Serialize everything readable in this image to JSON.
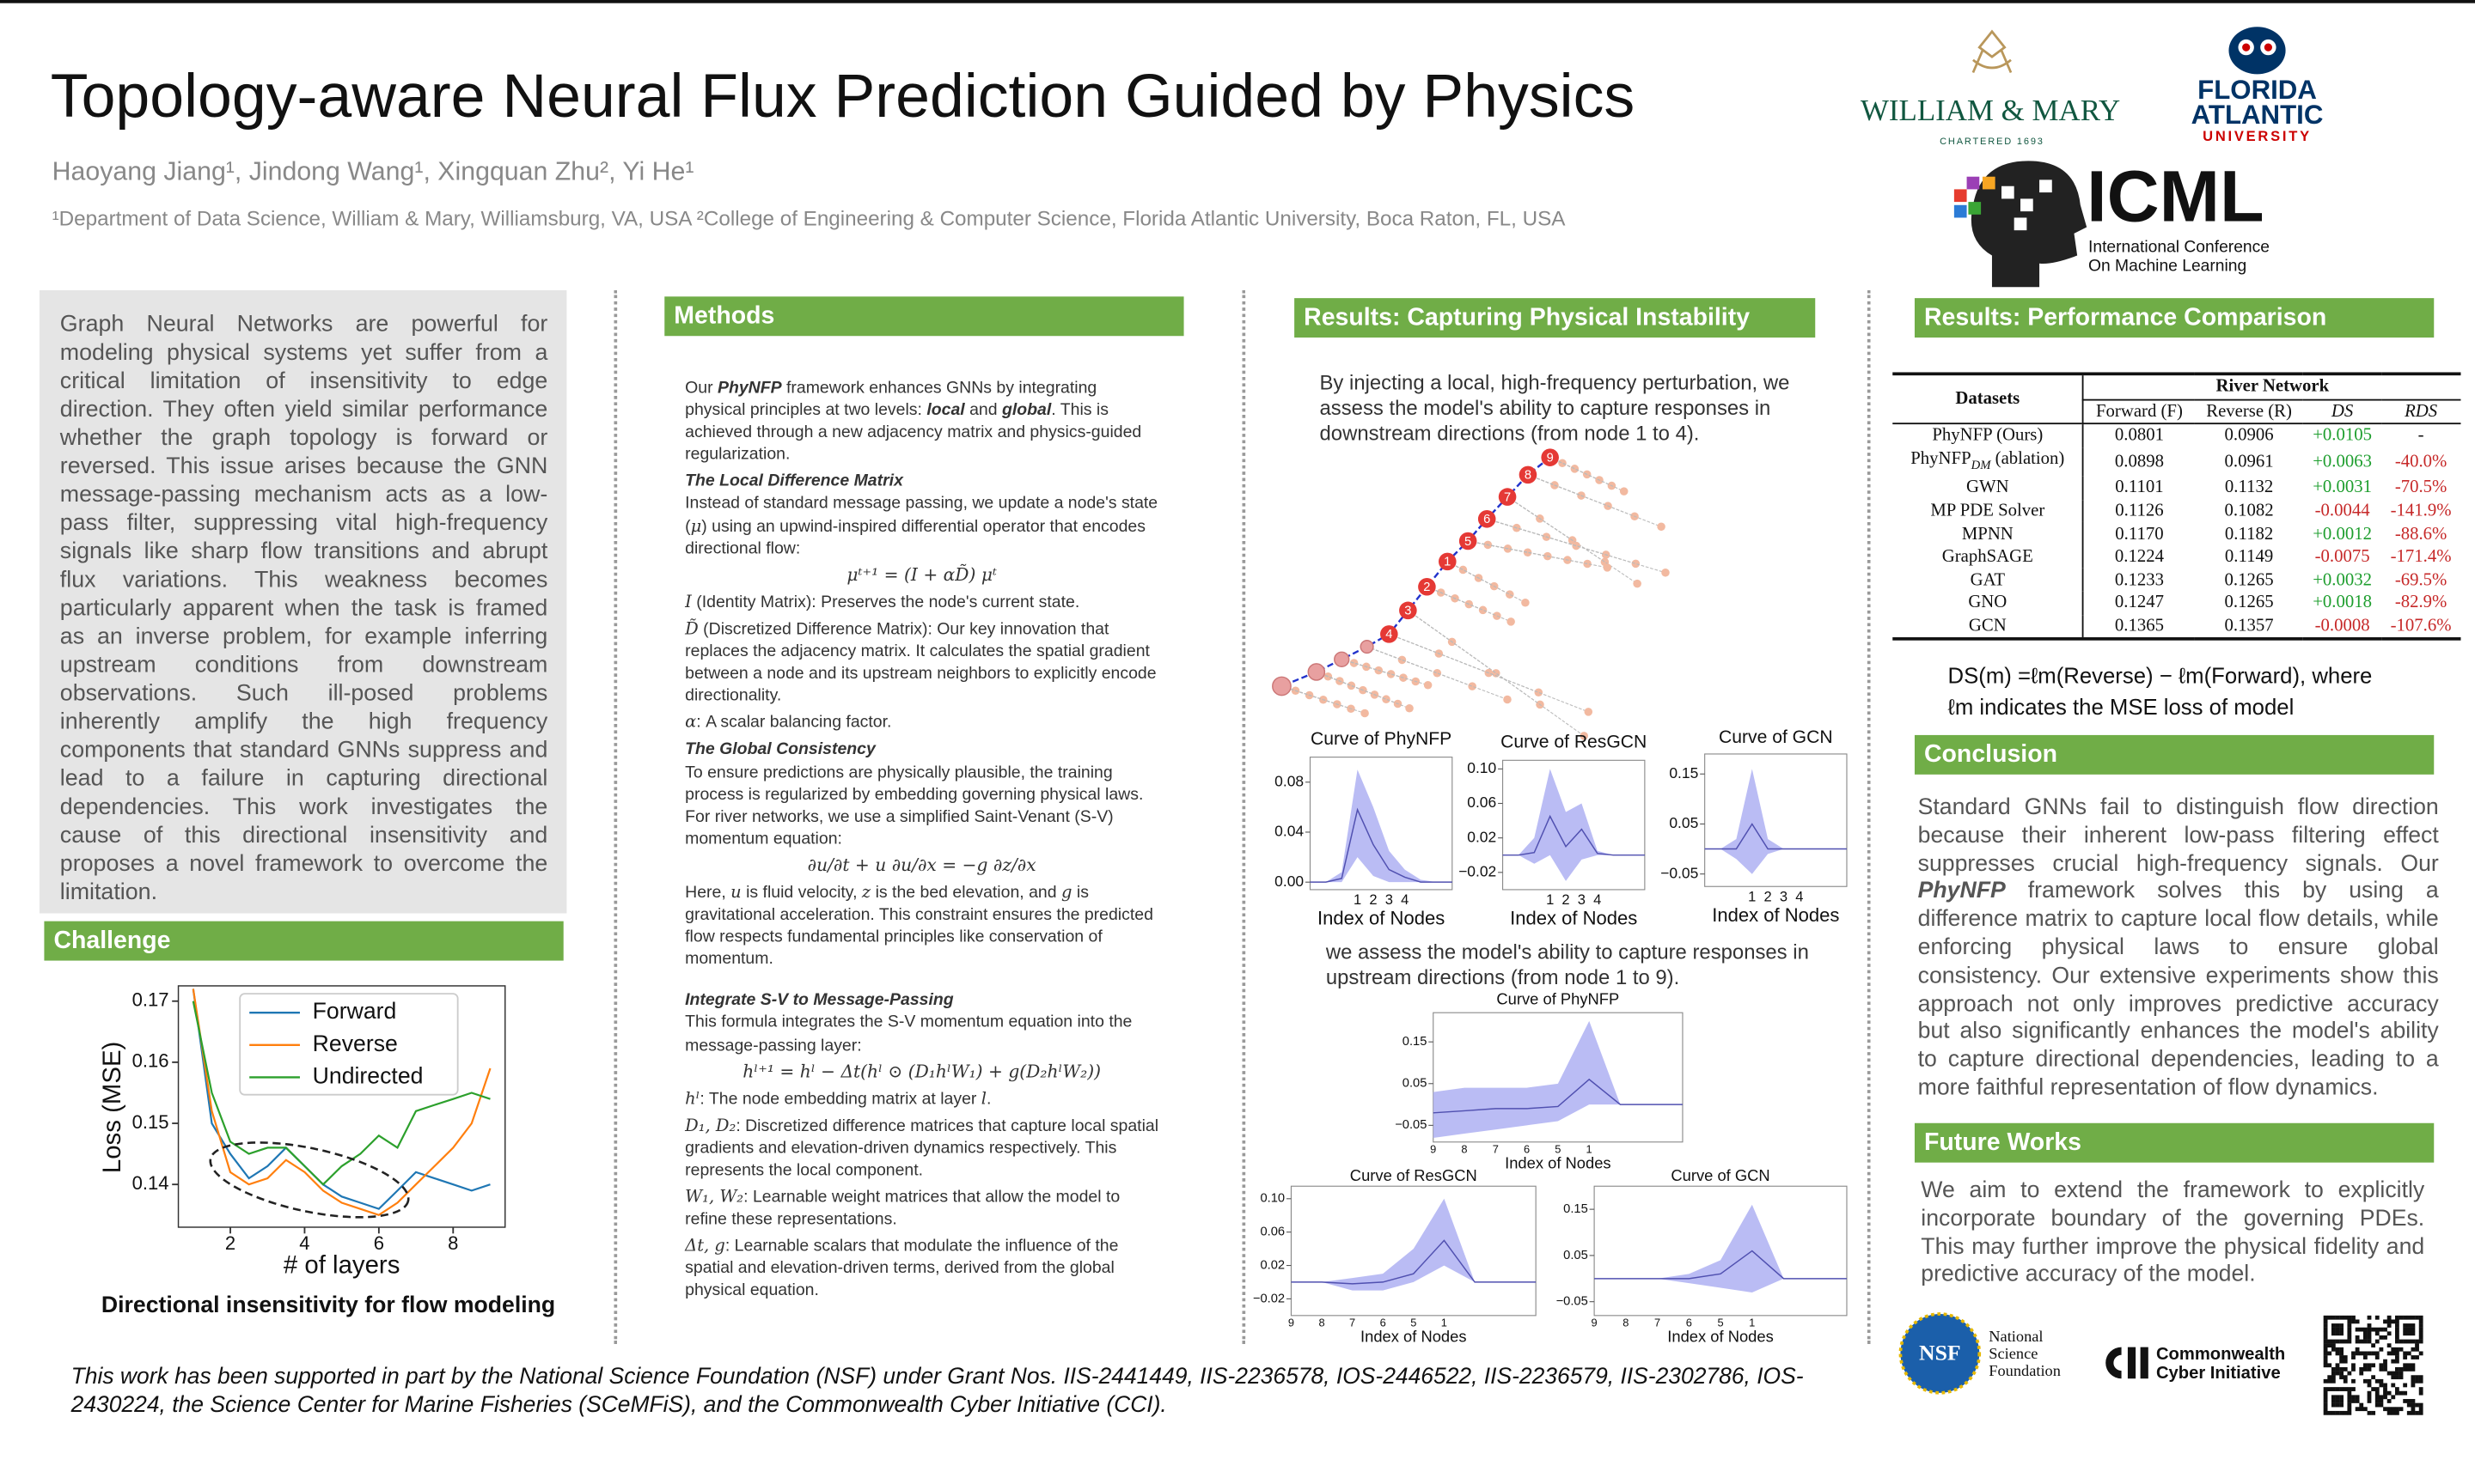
{
  "header": {
    "title": "Topology-aware Neural Flux Prediction Guided by Physics",
    "authors": "Haoyang Jiang¹, Jindong Wang¹, Xingquan Zhu², Yi He¹",
    "affiliations": "¹Department of Data Science, William & Mary, Williamsburg, VA, USA ²College of Engineering & Computer Science, Florida Atlantic University, Boca Raton, FL, USA",
    "logos": {
      "wm_name": "WILLIAM & MARY",
      "wm_sub": "CHARTERED 1693",
      "fau_1": "FLORIDA",
      "fau_2": "ATLANTIC",
      "fau_3": "UNIVERSITY",
      "icml": "ICML",
      "icml_1": "International Conference",
      "icml_2": "On Machine Learning"
    }
  },
  "intro": "Graph Neural Networks are powerful for modeling physical systems yet suffer from a critical limitation of insensitivity to edge direction. They often yield similar performance whether the graph topology is forward or reversed. This issue arises because the GNN message-passing mechanism acts as a low-pass filter, suppressing vital high-frequency signals like sharp flow transitions and abrupt flux variations. This weakness becomes particularly apparent when the task is framed as an inverse problem, for example inferring upstream conditions from downstream observations. Such ill-posed problems inherently amplify the high frequency components that standard GNNs suppress and lead to a failure in capturing directional dependencies. This work investigates the cause of this directional insensitivity and proposes a novel framework to overcome the limitation.",
  "challenge": {
    "heading": "Challenge",
    "caption": "Directional insensitivity for flow modeling",
    "chart": {
      "type": "line",
      "xlabel": "# of layers",
      "ylabel": "Loss (MSE)",
      "x": [
        1,
        1.5,
        2,
        2.5,
        3,
        3.5,
        4,
        4.5,
        5,
        5.5,
        6,
        6.5,
        7,
        7.5,
        8,
        8.5,
        9
      ],
      "series": [
        {
          "name": "Forward",
          "color": "#1f77b4",
          "values": [
            0.172,
            0.15,
            0.145,
            0.141,
            0.143,
            0.146,
            0.143,
            0.14,
            0.138,
            0.137,
            0.136,
            0.139,
            0.142,
            0.141,
            0.14,
            0.139,
            0.14
          ]
        },
        {
          "name": "Reverse",
          "color": "#ff7f0e",
          "values": [
            0.172,
            0.152,
            0.142,
            0.14,
            0.141,
            0.144,
            0.142,
            0.139,
            0.137,
            0.136,
            0.135,
            0.137,
            0.14,
            0.143,
            0.146,
            0.15,
            0.159
          ]
        },
        {
          "name": "Undirected",
          "color": "#2ca02c",
          "values": [
            0.17,
            0.155,
            0.147,
            0.145,
            0.146,
            0.146,
            0.143,
            0.14,
            0.143,
            0.145,
            0.148,
            0.146,
            0.152,
            0.153,
            0.154,
            0.155,
            0.154
          ]
        }
      ],
      "xlim": [
        0.6,
        9.4
      ],
      "ylim": [
        0.133,
        0.1725
      ],
      "xticks": [
        2,
        4,
        6,
        8
      ],
      "yticks": [
        0.14,
        0.15,
        0.16,
        0.17
      ]
    }
  },
  "methods": {
    "heading": "Methods",
    "blocks": [
      {
        "p": [
          "Our ",
          {
            "em": "PhyNFP"
          },
          " framework enhances GNNs by integrating physical principles at two levels: ",
          {
            "em": "local"
          },
          " and ",
          {
            "em": "global"
          },
          ". This is achieved through a new adjacency matrix and physics-guided regularization."
        ]
      },
      {
        "h": "The Local Difference Matrix"
      },
      {
        "p": [
          "Instead of standard message passing, we update a node's state (",
          {
            "m": "μ"
          },
          ") using an upwind-inspired differential operator that encodes directional flow:"
        ]
      },
      {
        "eq": "μᵗ⁺¹ = (I + αD̃) μᵗ"
      },
      {
        "p": [
          {
            "m": "I"
          },
          " (Identity Matrix): Preserves the node's current state."
        ]
      },
      {
        "p": [
          {
            "m": "D̃"
          },
          " (Discretized Difference Matrix): Our key innovation that replaces the adjacency matrix. It calculates the spatial gradient between a node and its upstream neighbors to explicitly encode directionality."
        ]
      },
      {
        "p": [
          {
            "m": "α"
          },
          ": A scalar balancing factor."
        ]
      },
      {
        "h": "The Global Consistency"
      },
      {
        "p": [
          "To ensure predictions are physically plausible, the training process is regularized by embedding governing physical laws. For river networks, we use a simplified Saint-Venant (S-V) momentum equation:"
        ]
      },
      {
        "eq": "∂u/∂t + u ∂u/∂x = −g ∂z/∂x"
      },
      {
        "p": [
          "Here, ",
          {
            "m": "u"
          },
          " is fluid velocity, ",
          {
            "m": "z"
          },
          " is the bed elevation, and ",
          {
            "m": "g"
          },
          " is gravitational acceleration. This constraint ensures the predicted flow respects fundamental principles like conservation of momentum."
        ]
      },
      {
        "h": "Integrate S-V to Message-Passing"
      },
      {
        "p": [
          "This formula integrates the S-V momentum equation into the message-passing layer:"
        ]
      },
      {
        "eq": "hˡ⁺¹ = hˡ − Δt(hˡ ⊙ (D₁hˡW₁) + g(D₂hˡW₂))"
      },
      {
        "p": [
          {
            "m": "hˡ"
          },
          ": The node embedding matrix at layer ",
          {
            "m": "l"
          },
          "."
        ]
      },
      {
        "p": [
          {
            "m": "D₁, D₂"
          },
          ": Discretized difference matrices that capture local spatial gradients and elevation-driven dynamics respectively. This represents the local component."
        ]
      },
      {
        "p": [
          {
            "m": "W₁, W₂"
          },
          ": Learnable weight matrices that allow the model to refine these representations."
        ]
      },
      {
        "p": [
          {
            "m": "Δt, g"
          },
          ": Learnable scalars that modulate the influence of the spatial and elevation-driven terms, derived from the global physical equation."
        ]
      }
    ]
  },
  "instability": {
    "heading": "Results: Capturing Physical Instability",
    "text_down": "By injecting a local, high-frequency perturbation, we assess the model's ability to capture responses in downstream directions (from node 1 to 4).",
    "text_up": "we assess the model's ability to capture responses in upstream directions (from node 1 to 9).",
    "network_labels": [
      1,
      2,
      3,
      4,
      5,
      6,
      7,
      8,
      9
    ],
    "plots": [
      {
        "title": "Curve of PhyNFP",
        "xlabel": "Index of Nodes",
        "categories": [
          null,
          null,
          null,
          "1",
          "2",
          "3",
          "4",
          null,
          null,
          null
        ],
        "mean": [
          0,
          0,
          0.003,
          0.058,
          0.03,
          0.01,
          0.004,
          0,
          0,
          0
        ],
        "lower": [
          0,
          0,
          0,
          0.02,
          0.005,
          0,
          0,
          0,
          0,
          0
        ],
        "upper": [
          0,
          0,
          0.008,
          0.09,
          0.06,
          0.025,
          0.01,
          0.002,
          0,
          0
        ],
        "ylim": [
          -0.006,
          0.1
        ],
        "yticks": [
          {
            "value": 0,
            "label": "0.00"
          },
          0.04,
          0.08
        ]
      },
      {
        "title": "Curve of ResGCN",
        "xlabel": "Index of Nodes",
        "categories": [
          null,
          null,
          null,
          "1",
          "2",
          "3",
          "4",
          null,
          null,
          null
        ],
        "mean": [
          0,
          0,
          0.003,
          0.045,
          0.01,
          0.03,
          0.002,
          0,
          0,
          0
        ],
        "lower": [
          0,
          0,
          -0.01,
          0,
          -0.03,
          -0.005,
          0,
          0,
          0,
          0
        ],
        "upper": [
          0,
          0,
          0.02,
          0.1,
          0.05,
          0.06,
          0.005,
          0,
          0,
          0
        ],
        "ylim": [
          -0.04,
          0.11
        ],
        "yticks": [
          {
            "value": 0.1,
            "label": "0.10"
          },
          0.06,
          0.02,
          {
            "value": -0.02,
            "label": "−0.02"
          }
        ]
      },
      {
        "title": "Curve of GCN",
        "xlabel": "Index of Nodes",
        "categories": [
          null,
          null,
          null,
          "1",
          "2",
          "3",
          "4",
          null,
          null,
          null
        ],
        "mean": [
          0,
          0,
          0,
          0.05,
          0,
          0,
          0,
          0,
          0,
          0
        ],
        "lower": [
          0,
          0,
          -0.02,
          -0.05,
          -0.01,
          0,
          0,
          0,
          0,
          0
        ],
        "upper": [
          0,
          0,
          0.02,
          0.16,
          0.02,
          0,
          0,
          0,
          0,
          0
        ],
        "ylim": [
          -0.075,
          0.19
        ],
        "yticks": [
          0.15,
          0.05,
          {
            "value": -0.05,
            "label": "−0.05"
          }
        ]
      },
      {
        "title": "Curve of PhyNFP",
        "xlabel": "Index of Nodes",
        "categories": [
          "9",
          "8",
          "7",
          "6",
          "5",
          "1",
          null,
          null,
          null
        ],
        "mean": [
          -0.02,
          -0.015,
          -0.01,
          -0.01,
          -0.005,
          0.06,
          0,
          0,
          0
        ],
        "lower": [
          -0.08,
          -0.07,
          -0.06,
          -0.05,
          -0.04,
          0,
          0,
          0,
          0
        ],
        "upper": [
          0.03,
          0.04,
          0.04,
          0.04,
          0.05,
          0.2,
          0,
          0,
          0
        ],
        "ylim": [
          -0.09,
          0.22
        ],
        "yticks": [
          0.15,
          0.05,
          {
            "value": -0.05,
            "label": "−0.05"
          }
        ]
      },
      {
        "title": "Curve of ResGCN",
        "xlabel": "Index of Nodes",
        "categories": [
          "9",
          "8",
          "7",
          "6",
          "5",
          "1",
          null,
          null,
          null
        ],
        "mean": [
          0,
          0,
          -0.002,
          0,
          0.01,
          0.05,
          0,
          0,
          0
        ],
        "lower": [
          0,
          0,
          -0.01,
          -0.01,
          0,
          0.02,
          0,
          0,
          0
        ],
        "upper": [
          0,
          0,
          0.005,
          0.01,
          0.04,
          0.1,
          0,
          0,
          0
        ],
        "ylim": [
          -0.04,
          0.115
        ],
        "yticks": [
          {
            "value": 0.1,
            "label": "0.10"
          },
          0.06,
          0.02,
          {
            "value": -0.02,
            "label": "−0.02"
          }
        ]
      },
      {
        "title": "Curve of GCN",
        "xlabel": "Index of Nodes",
        "categories": [
          "9",
          "8",
          "7",
          "6",
          "5",
          "1",
          null,
          null,
          null
        ],
        "mean": [
          0,
          0,
          0,
          0,
          0.01,
          0.06,
          0,
          0,
          0
        ],
        "lower": [
          0,
          0,
          0,
          -0.01,
          -0.02,
          -0.03,
          0,
          0,
          0
        ],
        "upper": [
          0,
          0,
          0,
          0.01,
          0.04,
          0.16,
          0,
          0,
          0
        ],
        "ylim": [
          -0.08,
          0.2
        ],
        "yticks": [
          0.15,
          0.05,
          {
            "value": -0.05,
            "label": "−0.05"
          }
        ]
      }
    ]
  },
  "comparison": {
    "heading": "Results: Performance Comparison",
    "table": {
      "corner": "Datasets",
      "group": "River Network",
      "columns": [
        "Forward (F)",
        "Reverse (R)",
        "DS",
        "RDS"
      ],
      "rows": [
        [
          "PhyNFP (Ours)",
          "0.0801",
          "0.0906",
          "+0.0105",
          "-"
        ],
        [
          {
            "text": "PhyNFP",
            "sub": "DM",
            "suffix": " (ablation)"
          },
          "0.0898",
          "0.0961",
          "+0.0063",
          "-40.0%"
        ],
        [
          "GWN",
          "0.1101",
          "0.1132",
          "+0.0031",
          "-70.5%"
        ],
        [
          "MP PDE Solver",
          "0.1126",
          "0.1082",
          "-0.0044",
          "-141.9%"
        ],
        [
          "MPNN",
          "0.1170",
          "0.1182",
          "+0.0012",
          "-88.6%"
        ],
        [
          "GraphSAGE",
          "0.1224",
          "0.1149",
          "-0.0075",
          "-171.4%"
        ],
        [
          "GAT",
          "0.1233",
          "0.1265",
          "+0.0032",
          "-69.5%"
        ],
        [
          "GNO",
          "0.1247",
          "0.1265",
          "+0.0018",
          "-82.9%"
        ],
        [
          "GCN",
          "0.1365",
          "0.1357",
          "-0.0008",
          "-107.6%"
        ]
      ]
    },
    "note_1": "DS(m) =ℓm(Reverse) − ℓm(Forward), where",
    "note_2": "ℓm indicates the MSE loss of model"
  },
  "conclusion": {
    "heading": "Conclusion",
    "text": [
      "Standard GNNs fail to distinguish flow direction because their inherent low-pass filtering effect suppresses crucial high-frequency signals. Our ",
      {
        "em": "PhyNFP"
      },
      " framework solves this by using a difference matrix to capture local flow details, while enforcing physical laws to ensure global consistency. Our extensive experiments show this approach not only improves predictive accuracy but also significantly enhances the model's ability to capture directional dependencies, leading to a more faithful representation of flow dynamics."
    ]
  },
  "future": {
    "heading": "Future Works",
    "text": "We aim to extend the framework to explicitly incorporate boundary of the governing PDEs. This may further improve the physical fidelity and predictive accuracy of the model."
  },
  "footer": {
    "funding": "This work has been supported in part by the National Science Foundation (NSF) under Grant Nos. IIS-2441449, IIS-2236578, IOS-2446522, IIS-2236579, IIS-2302786, IOS-2430224, the Science Center for Marine Fisheries (SCeMFiS), and the Commonwealth Cyber Initiative (CCI).",
    "nsf": "NSF",
    "nsf_1": "National",
    "nsf_2": "Science",
    "nsf_3": "Foundation",
    "cci_1": "Commonwealth",
    "cci_2": "Cyber Initiative"
  }
}
